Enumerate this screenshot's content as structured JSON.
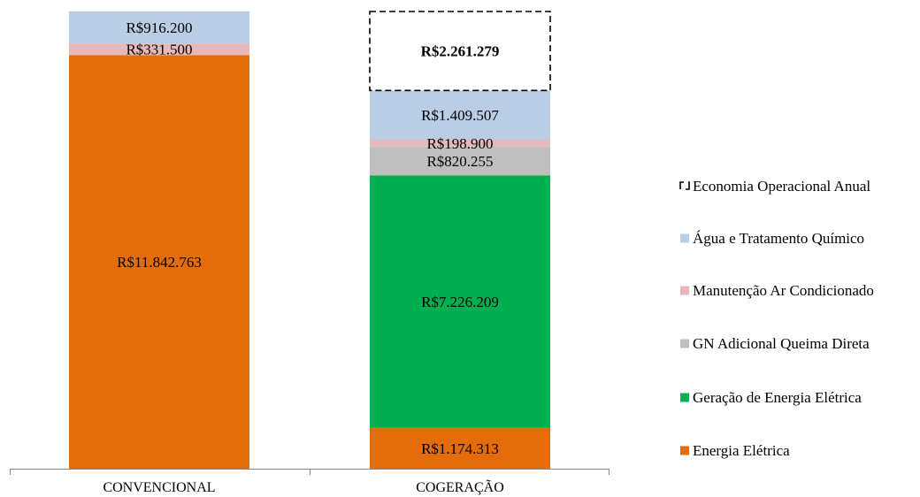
{
  "chart_data": {
    "type": "stacked-bar",
    "title": "",
    "xlabel": "",
    "ylabel": "",
    "categories": [
      "CONVENCIONAL",
      "COGERAÇÃO"
    ],
    "ylim": [
      0,
      13090463
    ],
    "grid": false,
    "legend_position": "right",
    "series": [
      {
        "name": "Energia Elétrica",
        "color": "#E46C0A",
        "values": [
          11842763,
          1174313
        ],
        "labels": [
          "R$11.842.763",
          "R$1.174.313"
        ]
      },
      {
        "name": "Geração de Energia Elétrica",
        "color": "#00B050",
        "values": [
          0,
          7226209
        ],
        "labels": [
          "",
          "R$7.226.209"
        ]
      },
      {
        "name": "GN Adicional Queima Direta",
        "color": "#BFBFBF",
        "values": [
          0,
          820255
        ],
        "labels": [
          "",
          "R$820.255"
        ]
      },
      {
        "name": "Manutenção Ar Condicionado",
        "color": "#E6B9B8",
        "values": [
          331500,
          198900
        ],
        "labels": [
          "R$331.500",
          "R$198.900"
        ]
      },
      {
        "name": "Água e Tratamento Químico",
        "color": "#B9CDE5",
        "values": [
          916200,
          1409507
        ],
        "labels": [
          "R$916.200",
          "R$1.409.507"
        ]
      },
      {
        "name": "Economia Operacional Anual",
        "color": "#000000",
        "dashed": true,
        "values": [
          0,
          2261279
        ],
        "labels": [
          "",
          "R$2.261.279"
        ]
      }
    ]
  }
}
